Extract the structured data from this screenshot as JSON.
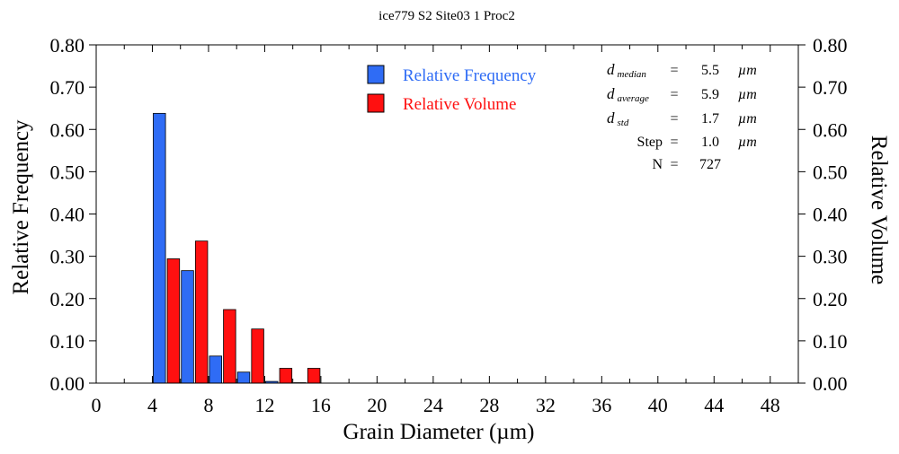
{
  "chart_data": {
    "type": "bar",
    "title": "ice779 S2 Site03 1 Proc2",
    "xlabel": "Grain Diameter (µm)",
    "ylabel": "Relative Frequency",
    "y2label": "Relative Volume",
    "xlim": [
      0,
      50
    ],
    "ylim": [
      0,
      0.8
    ],
    "xticks": [
      "0",
      "4",
      "8",
      "12",
      "16",
      "20",
      "24",
      "28",
      "32",
      "36",
      "40",
      "44",
      "48"
    ],
    "yticks": [
      "0.00",
      "0.10",
      "0.20",
      "0.30",
      "0.40",
      "0.50",
      "0.60",
      "0.70",
      "0.80"
    ],
    "bin_centers": [
      5,
      7,
      9,
      11,
      13,
      15
    ],
    "series": [
      {
        "name": "Relative Frequency",
        "color": "#2f6cf5",
        "values": [
          0.638,
          0.266,
          0.064,
          0.026,
          0.004,
          0.001
        ]
      },
      {
        "name": "Relative Volume",
        "color": "#ff1010",
        "values": [
          0.294,
          0.336,
          0.174,
          0.128,
          0.035,
          0.035
        ]
      }
    ],
    "legend_position": "top-center",
    "stats": [
      {
        "label": "d",
        "sub": "median",
        "eq": "=",
        "value": "5.5",
        "unit": "µm"
      },
      {
        "label": "d",
        "sub": "average",
        "eq": "=",
        "value": "5.9",
        "unit": "µm"
      },
      {
        "label": "d",
        "sub": "std",
        "eq": "=",
        "value": "1.7",
        "unit": "µm"
      },
      {
        "label": "Step",
        "sub": "",
        "eq": "=",
        "value": "1.0",
        "unit": "µm"
      },
      {
        "label": "N",
        "sub": "",
        "eq": "=",
        "value": "727",
        "unit": ""
      }
    ]
  }
}
